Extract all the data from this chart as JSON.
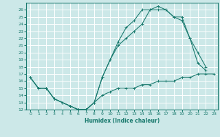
{
  "xlabel": "Humidex (Indice chaleur)",
  "bg_color": "#cce8e8",
  "grid_color": "#ffffff",
  "line_color": "#1a7a6e",
  "xlim": [
    -0.5,
    23.5
  ],
  "ylim": [
    12,
    27
  ],
  "xticks": [
    0,
    1,
    2,
    3,
    4,
    5,
    6,
    7,
    8,
    9,
    10,
    11,
    12,
    13,
    14,
    15,
    16,
    17,
    18,
    19,
    20,
    21,
    22,
    23
  ],
  "yticks": [
    12,
    13,
    14,
    15,
    16,
    17,
    18,
    19,
    20,
    21,
    22,
    23,
    24,
    25,
    26
  ],
  "line1_x": [
    0,
    1,
    2,
    3,
    4,
    5,
    6,
    7,
    8,
    9,
    10,
    11,
    12,
    13,
    14,
    15,
    16,
    17,
    18,
    19,
    20,
    21,
    22,
    23
  ],
  "line1_y": [
    16.5,
    15,
    15,
    13.5,
    13,
    12.5,
    12,
    12,
    13,
    14,
    14.5,
    15,
    15,
    15,
    15.5,
    15.5,
    16,
    16,
    16,
    16.5,
    16.5,
    17,
    17,
    17
  ],
  "line2_x": [
    0,
    1,
    2,
    3,
    4,
    5,
    6,
    7,
    8,
    9,
    10,
    11,
    12,
    13,
    14,
    15,
    16,
    17,
    18,
    19,
    20,
    21,
    22
  ],
  "line2_y": [
    16.5,
    15,
    15,
    13.5,
    13,
    12.5,
    12,
    12,
    13,
    16.5,
    19,
    21,
    22,
    23,
    24,
    26,
    26,
    26,
    25,
    25,
    22,
    20,
    18
  ],
  "line3_x": [
    0,
    1,
    2,
    3,
    4,
    5,
    6,
    7,
    8,
    9,
    10,
    11,
    12,
    13,
    14,
    15,
    16,
    17,
    18,
    19,
    20,
    21,
    22
  ],
  "line3_y": [
    16.5,
    15,
    15,
    13.5,
    13,
    12.5,
    12,
    12,
    13,
    16.5,
    19,
    21.5,
    23.5,
    24.5,
    26,
    26,
    26.5,
    26,
    25,
    24.5,
    22,
    18.5,
    17.5
  ]
}
